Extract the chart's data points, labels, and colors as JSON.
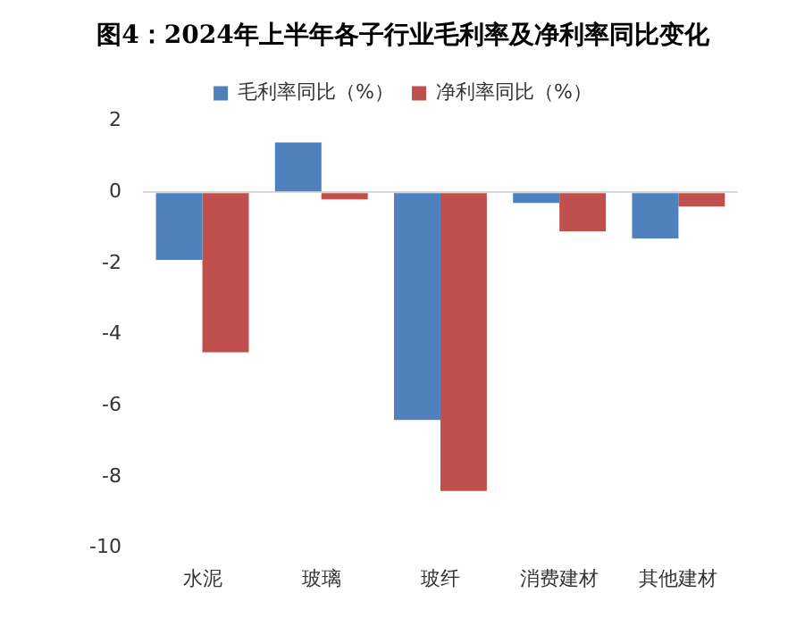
{
  "chart_data": {
    "type": "bar",
    "title": "图4：2024年上半年各子行业毛利率及净利率同比变化",
    "categories": [
      "水泥",
      "玻璃",
      "玻纤",
      "消费建材",
      "其他建材"
    ],
    "series": [
      {
        "name": "毛利率同比（%）",
        "color": "#4f81bd",
        "values": [
          -1.9,
          1.4,
          -6.4,
          -0.3,
          -1.3
        ]
      },
      {
        "name": "净利率同比（%）",
        "color": "#c0504d",
        "values": [
          -4.5,
          -0.2,
          -8.4,
          -1.1,
          -0.4
        ]
      }
    ],
    "ylim": [
      -10,
      2
    ],
    "yticks": [
      -10,
      -8,
      -6,
      -4,
      -2,
      0,
      2
    ],
    "legend": "top"
  }
}
